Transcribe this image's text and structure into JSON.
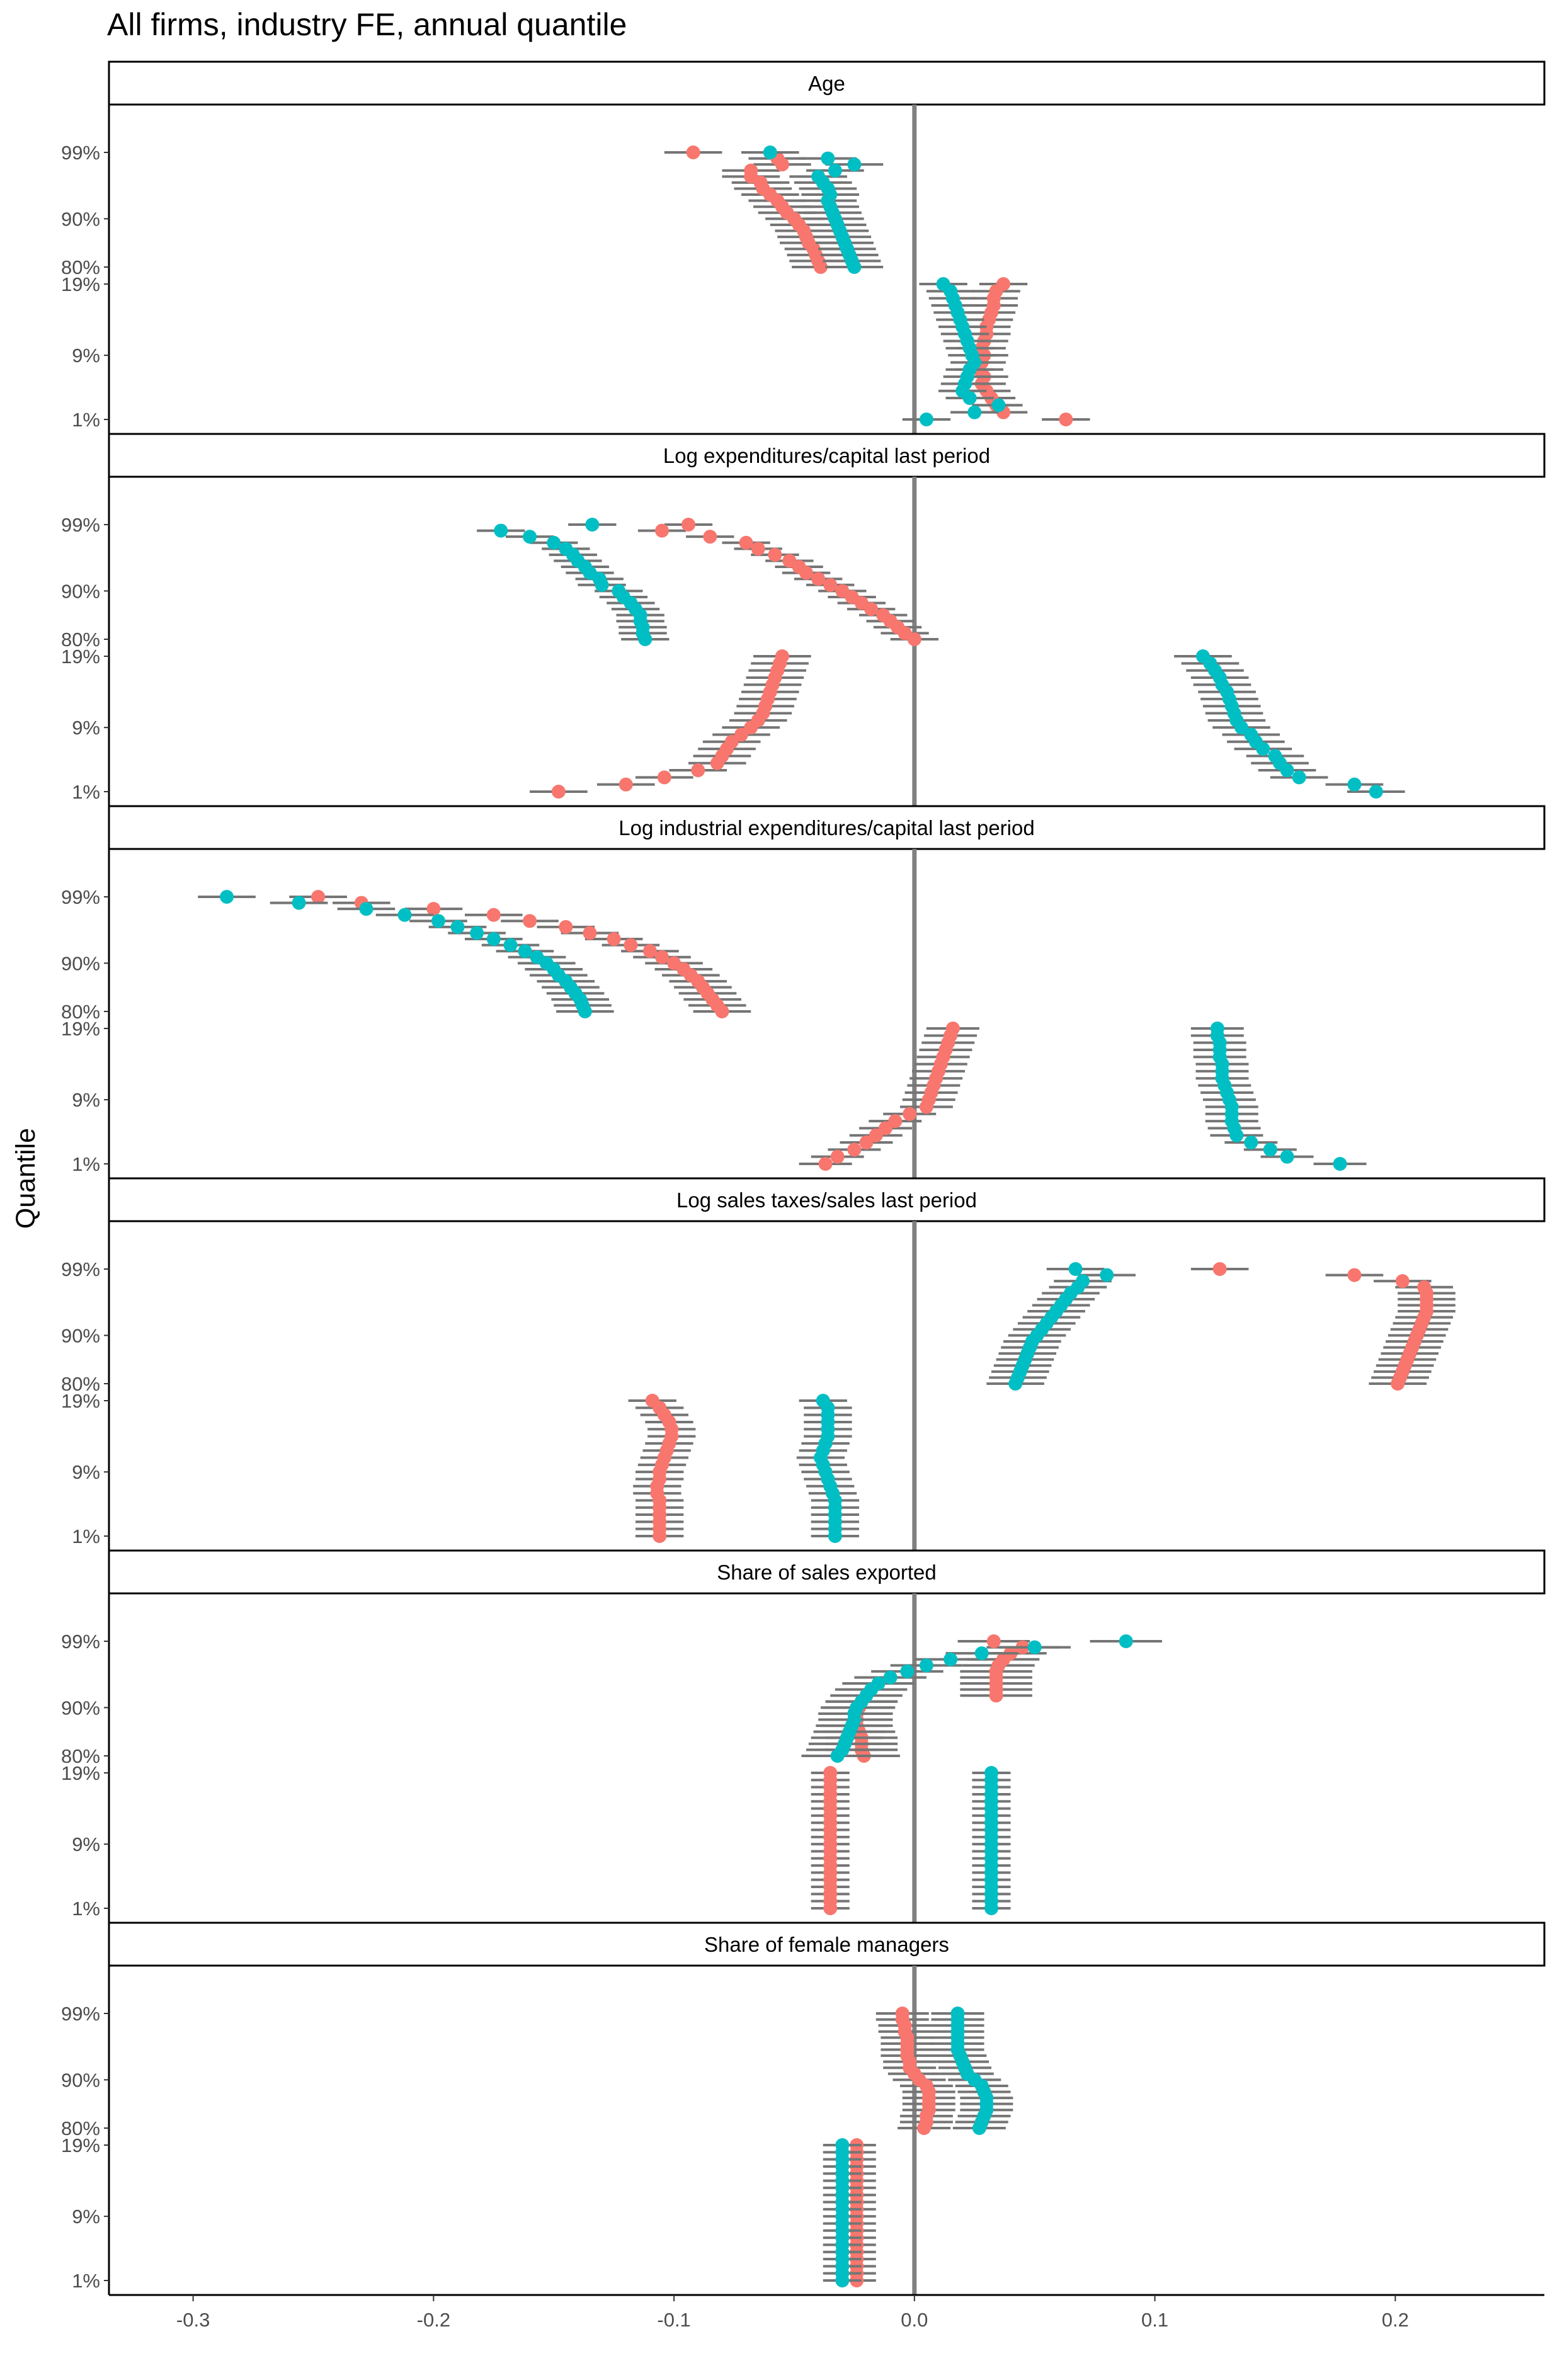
{
  "title": "All firms, industry FE, annual quantile",
  "chart_data": {
    "type": "scatter",
    "title": "All firms, industry FE, annual quantile",
    "xlabel": "",
    "ylabel": "Quantile",
    "xlim": [
      -0.335,
      0.262
    ],
    "x_ticks": [
      -0.3,
      -0.2,
      -0.1,
      0.0,
      0.1,
      0.2
    ],
    "x_tick_labels": [
      "-0.3",
      "-0.2",
      "-0.1",
      "0.0",
      "0.1",
      "0.2"
    ],
    "y_tick_labels": [
      "99%",
      "90%",
      "80%",
      "19%",
      "9%",
      "1%"
    ],
    "grid": false,
    "legend": "none",
    "colors": {
      "red": "#F8766D",
      "teal": "#00BFC4",
      "ci": "#757575",
      "zero_line": "#808080"
    },
    "panels": [
      {
        "name": "Age",
        "top_red": [
          -0.092,
          -0.057,
          -0.055,
          -0.068,
          -0.068,
          -0.064,
          -0.063,
          -0.06,
          -0.057,
          -0.055,
          -0.053,
          -0.05,
          -0.048,
          -0.046,
          -0.045,
          -0.044,
          -0.042,
          -0.041,
          -0.04,
          -0.039
        ],
        "top_teal": [
          -0.06,
          -0.036,
          -0.025,
          -0.033,
          -0.04,
          -0.038,
          -0.036,
          -0.035,
          -0.036,
          -0.035,
          -0.034,
          -0.033,
          -0.032,
          -0.031,
          -0.03,
          -0.029,
          -0.028,
          -0.027,
          -0.026,
          -0.025
        ],
        "top_se": 0.012,
        "bottom_red": [
          0.037,
          0.034,
          0.033,
          0.033,
          0.032,
          0.031,
          0.03,
          0.03,
          0.029,
          0.028,
          0.029,
          0.028,
          0.027,
          0.029,
          0.028,
          0.03,
          0.032,
          0.034,
          0.037,
          0.063
        ],
        "bottom_teal": [
          0.012,
          0.015,
          0.016,
          0.017,
          0.018,
          0.019,
          0.02,
          0.021,
          0.022,
          0.023,
          0.024,
          0.025,
          0.023,
          0.022,
          0.021,
          0.02,
          0.023,
          0.035,
          0.025,
          0.005
        ],
        "bottom_se": 0.01
      },
      {
        "name": "Log expenditures/capital last period",
        "top_red": [
          -0.094,
          -0.105,
          -0.085,
          -0.07,
          -0.065,
          -0.058,
          -0.052,
          -0.048,
          -0.045,
          -0.04,
          -0.035,
          -0.03,
          -0.026,
          -0.022,
          -0.018,
          -0.013,
          -0.01,
          -0.007,
          -0.004,
          0.0
        ],
        "top_teal": [
          -0.134,
          -0.172,
          -0.16,
          -0.15,
          -0.145,
          -0.142,
          -0.14,
          -0.137,
          -0.135,
          -0.131,
          -0.13,
          -0.123,
          -0.121,
          -0.118,
          -0.116,
          -0.114,
          -0.114,
          -0.113,
          -0.113,
          -0.112
        ],
        "top_se": 0.01,
        "bottom_red": [
          -0.055,
          -0.056,
          -0.057,
          -0.058,
          -0.059,
          -0.06,
          -0.061,
          -0.062,
          -0.063,
          -0.065,
          -0.068,
          -0.072,
          -0.076,
          -0.078,
          -0.08,
          -0.082,
          -0.09,
          -0.104,
          -0.12,
          -0.148
        ],
        "bottom_teal": [
          0.12,
          0.123,
          0.125,
          0.127,
          0.128,
          0.13,
          0.131,
          0.132,
          0.133,
          0.134,
          0.136,
          0.14,
          0.142,
          0.145,
          0.15,
          0.152,
          0.155,
          0.16,
          0.183,
          0.192
        ],
        "bottom_se": 0.012
      },
      {
        "name": "Log industrial expenditures/capital last period",
        "top_red": [
          -0.248,
          -0.23,
          -0.2,
          -0.175,
          -0.16,
          -0.145,
          -0.135,
          -0.125,
          -0.118,
          -0.11,
          -0.105,
          -0.1,
          -0.096,
          -0.093,
          -0.09,
          -0.088,
          -0.086,
          -0.084,
          -0.082,
          -0.08
        ],
        "top_teal": [
          -0.286,
          -0.256,
          -0.228,
          -0.212,
          -0.198,
          -0.19,
          -0.182,
          -0.175,
          -0.168,
          -0.162,
          -0.157,
          -0.153,
          -0.15,
          -0.148,
          -0.145,
          -0.143,
          -0.141,
          -0.139,
          -0.138,
          -0.137
        ],
        "top_se": 0.012,
        "bottom_red": [
          0.016,
          0.015,
          0.014,
          0.013,
          0.012,
          0.011,
          0.01,
          0.009,
          0.008,
          0.007,
          0.006,
          0.005,
          -0.002,
          -0.008,
          -0.012,
          -0.016,
          -0.02,
          -0.025,
          -0.032,
          -0.037
        ],
        "bottom_teal": [
          0.126,
          0.126,
          0.127,
          0.127,
          0.127,
          0.128,
          0.128,
          0.128,
          0.129,
          0.13,
          0.131,
          0.132,
          0.132,
          0.132,
          0.133,
          0.134,
          0.14,
          0.148,
          0.155,
          0.177
        ],
        "bottom_se": 0.011
      },
      {
        "name": "Log sales taxes/sales last period",
        "top_red": [
          0.127,
          0.183,
          0.203,
          0.212,
          0.213,
          0.213,
          0.213,
          0.213,
          0.212,
          0.211,
          0.21,
          0.209,
          0.208,
          0.207,
          0.206,
          0.205,
          0.204,
          0.203,
          0.202,
          0.201
        ],
        "top_teal": [
          0.067,
          0.08,
          0.07,
          0.068,
          0.065,
          0.063,
          0.061,
          0.059,
          0.057,
          0.055,
          0.053,
          0.051,
          0.049,
          0.048,
          0.047,
          0.046,
          0.045,
          0.044,
          0.043,
          0.042
        ],
        "top_se": 0.012,
        "bottom_red": [
          -0.109,
          -0.106,
          -0.104,
          -0.102,
          -0.101,
          -0.101,
          -0.102,
          -0.103,
          -0.104,
          -0.105,
          -0.106,
          -0.106,
          -0.107,
          -0.107,
          -0.106,
          -0.106,
          -0.106,
          -0.106,
          -0.106,
          -0.106
        ],
        "bottom_teal": [
          -0.038,
          -0.036,
          -0.036,
          -0.036,
          -0.036,
          -0.036,
          -0.037,
          -0.038,
          -0.039,
          -0.038,
          -0.037,
          -0.036,
          -0.035,
          -0.034,
          -0.033,
          -0.033,
          -0.033,
          -0.033,
          -0.033,
          -0.033
        ],
        "bottom_se": 0.01
      },
      {
        "name": "Share of sales exported",
        "top_red": [
          0.033,
          0.045,
          0.04,
          0.037,
          0.035,
          0.034,
          0.034,
          0.034,
          0.034,
          0.034,
          -0.022,
          -0.023,
          -0.024,
          -0.024,
          -0.024,
          -0.023,
          -0.022,
          -0.022,
          -0.022,
          -0.021
        ],
        "top_teal": [
          0.088,
          0.05,
          0.028,
          0.015,
          0.005,
          -0.003,
          -0.01,
          -0.015,
          -0.018,
          -0.02,
          -0.022,
          -0.024,
          -0.025,
          -0.025,
          -0.026,
          -0.027,
          -0.028,
          -0.029,
          -0.03,
          -0.032
        ],
        "top_se": 0.015,
        "bottom_red": [
          -0.035,
          -0.035,
          -0.035,
          -0.035,
          -0.035,
          -0.035,
          -0.035,
          -0.035,
          -0.035,
          -0.035,
          -0.035,
          -0.035,
          -0.035,
          -0.035,
          -0.035,
          -0.035,
          -0.035,
          -0.035,
          -0.035,
          -0.035
        ],
        "bottom_teal": [
          0.032,
          0.032,
          0.032,
          0.032,
          0.032,
          0.032,
          0.032,
          0.032,
          0.032,
          0.032,
          0.032,
          0.032,
          0.032,
          0.032,
          0.032,
          0.032,
          0.032,
          0.032,
          0.032,
          0.032
        ],
        "bottom_se": 0.008
      },
      {
        "name": "Share of female managers",
        "top_red": [
          -0.005,
          -0.005,
          -0.004,
          -0.004,
          -0.003,
          -0.003,
          -0.003,
          -0.003,
          -0.002,
          -0.002,
          0.0,
          0.002,
          0.005,
          0.006,
          0.006,
          0.006,
          0.006,
          0.005,
          0.005,
          0.004
        ],
        "top_teal": [
          0.018,
          0.018,
          0.018,
          0.018,
          0.018,
          0.018,
          0.018,
          0.019,
          0.02,
          0.021,
          0.022,
          0.025,
          0.028,
          0.029,
          0.03,
          0.03,
          0.03,
          0.029,
          0.028,
          0.027
        ],
        "top_se": 0.011,
        "bottom_red": [
          -0.024,
          -0.024,
          -0.024,
          -0.024,
          -0.024,
          -0.024,
          -0.024,
          -0.024,
          -0.024,
          -0.024,
          -0.024,
          -0.024,
          -0.024,
          -0.024,
          -0.024,
          -0.024,
          -0.024,
          -0.024,
          -0.024,
          -0.024
        ],
        "bottom_teal": [
          -0.03,
          -0.03,
          -0.03,
          -0.03,
          -0.03,
          -0.03,
          -0.03,
          -0.03,
          -0.03,
          -0.03,
          -0.03,
          -0.03,
          -0.03,
          -0.03,
          -0.03,
          -0.03,
          -0.03,
          -0.03,
          -0.03,
          -0.03
        ],
        "bottom_se": 0.008
      }
    ]
  }
}
